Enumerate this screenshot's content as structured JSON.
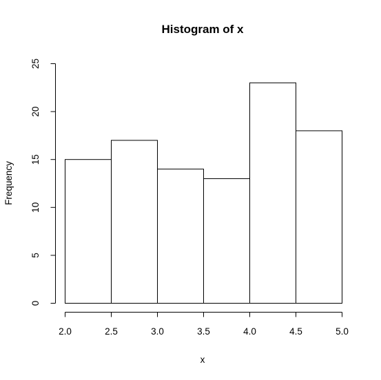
{
  "chart_data": {
    "type": "bar",
    "title": "Histogram of x",
    "xlabel": "x",
    "ylabel": "Frequency",
    "bins": [
      {
        "x0": 2.0,
        "x1": 2.5,
        "value": 15
      },
      {
        "x0": 2.5,
        "x1": 3.0,
        "value": 17
      },
      {
        "x0": 3.0,
        "x1": 3.5,
        "value": 14
      },
      {
        "x0": 3.5,
        "x1": 4.0,
        "value": 13
      },
      {
        "x0": 4.0,
        "x1": 4.5,
        "value": 23
      },
      {
        "x0": 4.5,
        "x1": 5.0,
        "value": 18
      }
    ],
    "xlim": [
      2.0,
      5.0
    ],
    "ylim": [
      0,
      25
    ],
    "x_ticks": [
      "2.0",
      "2.5",
      "3.0",
      "3.5",
      "4.0",
      "4.5",
      "5.0"
    ],
    "y_ticks": [
      "0",
      "5",
      "10",
      "15",
      "20",
      "25"
    ],
    "grid": false,
    "legend": "none"
  }
}
